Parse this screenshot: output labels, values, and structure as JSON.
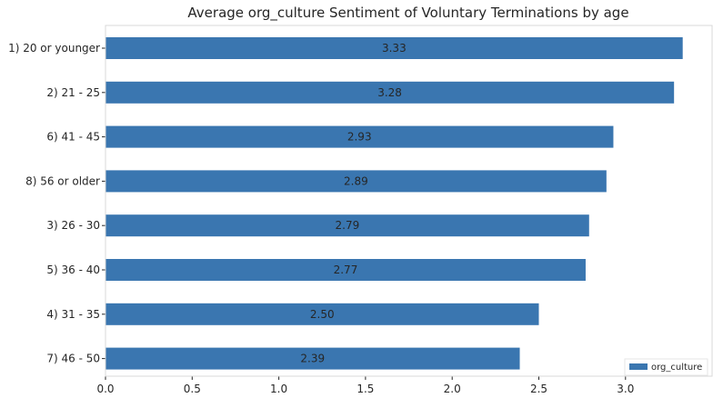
{
  "chart_data": {
    "type": "bar",
    "orientation": "horizontal",
    "title": "Average org_culture Sentiment of Voluntary Terminations by age",
    "xlabel": "",
    "ylabel": "",
    "categories": [
      "1) 20 or younger",
      "2) 21 - 25",
      "6) 41 - 45",
      "8) 56 or older",
      "3) 26 - 30",
      "5) 36 - 40",
      "4) 31 - 35",
      "7) 46 - 50"
    ],
    "series": [
      {
        "name": "org_culture",
        "values": [
          3.33,
          3.28,
          2.93,
          2.89,
          2.79,
          2.77,
          2.5,
          2.39
        ],
        "labels": [
          "3.33",
          "3.28",
          "2.93",
          "2.89",
          "2.79",
          "2.77",
          "2.50",
          "2.39"
        ]
      }
    ],
    "xlim": [
      0,
      3.5
    ],
    "xticks": [
      "0.0",
      "0.5",
      "1.0",
      "1.5",
      "2.0",
      "2.5",
      "3.0"
    ],
    "grid": false,
    "legend_position": "bottom-right",
    "colors": {
      "bar": "#3a76b0",
      "frame": "#d9d9d9",
      "text": "#262626"
    }
  }
}
